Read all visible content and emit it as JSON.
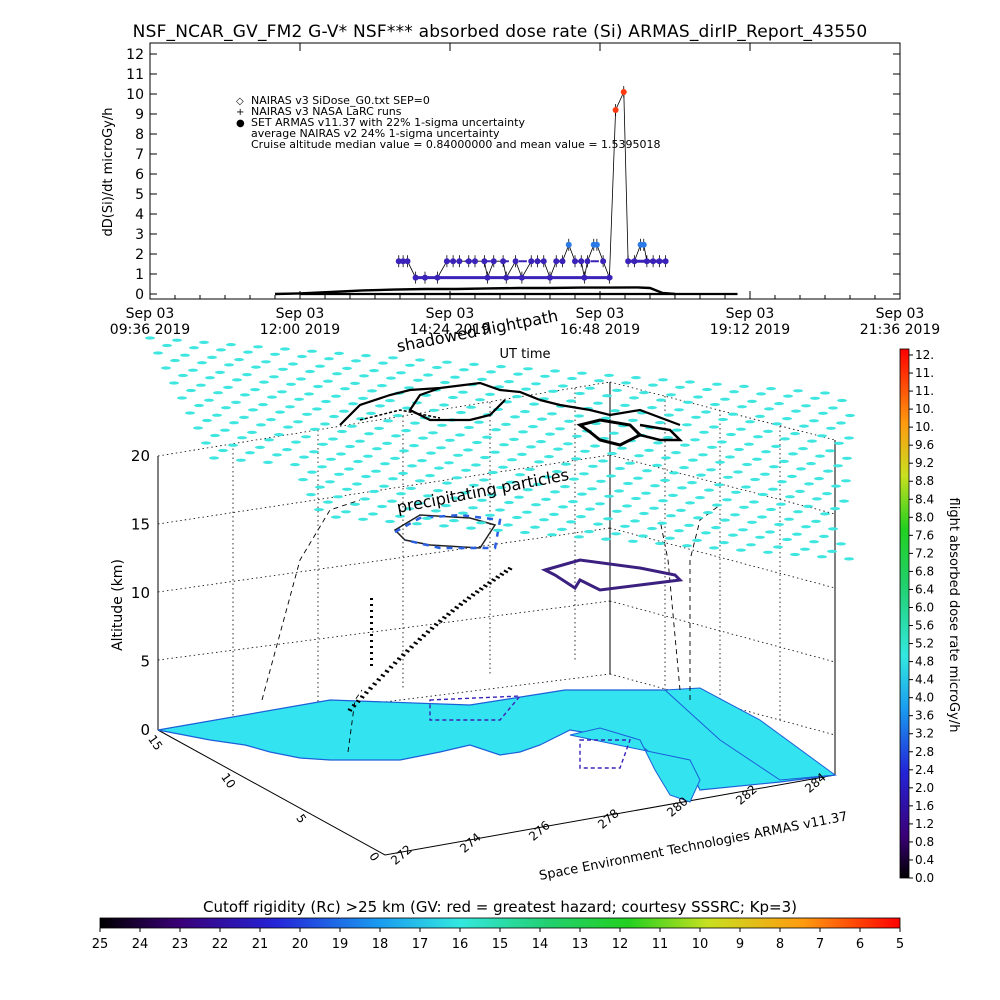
{
  "title": "NSF_NCAR_GV_FM2 G-V* NSF*** absorbed dose rate (Si) ARMAS_dirIP_Report_43550",
  "chart_data": [
    {
      "type": "line",
      "ylabel": "dD(Si)/dt microGy/h",
      "xlabel": "UT time",
      "ylim": [
        0,
        12
      ],
      "yticks": [
        "0",
        "1",
        "2",
        "3",
        "4",
        "5",
        "6",
        "7",
        "8",
        "9",
        "10",
        "11",
        "12"
      ],
      "xticks": [
        {
          "date": "Sep 03",
          "time": "09:36 2019"
        },
        {
          "date": "Sep 03",
          "time": "12:00 2019"
        },
        {
          "date": "Sep 03",
          "time": "14:24 2019"
        },
        {
          "date": "Sep 03",
          "time": "16:48 2019"
        },
        {
          "date": "Sep 03",
          "time": "19:12 2019"
        },
        {
          "date": "Sep 03",
          "time": "21:36 2019"
        }
      ],
      "legend": [
        {
          "marker": "◇",
          "text": "NAIRAS v3 SiDose_G0.txt SEP=0"
        },
        {
          "marker": "+",
          "text": "NAIRAS v3 NASA LaRC runs"
        },
        {
          "marker": "●",
          "text": "SET ARMAS v11.37 with 22% 1-sigma uncertainty"
        },
        {
          "marker": "",
          "text": "average NAIRAS v2 24% 1-sigma uncertainty"
        },
        {
          "marker": "",
          "text": "Cruise altitude median value = 0.84000000 and mean value = 1.5395018"
        }
      ],
      "series": [
        {
          "name": "NAIRAS v3 NASA LaRC runs",
          "values": [
            [
              11.6,
              0
            ],
            [
              12.0,
              0.03
            ],
            [
              12.5,
              0.1
            ],
            [
              13.0,
              0.18
            ],
            [
              13.5,
              0.22
            ],
            [
              14.0,
              0.25
            ],
            [
              14.5,
              0.25
            ],
            [
              15.0,
              0.28
            ],
            [
              15.5,
              0.3
            ],
            [
              16.0,
              0.3
            ],
            [
              16.5,
              0.32
            ],
            [
              17.0,
              0.32
            ],
            [
              17.4,
              0.33
            ],
            [
              17.6,
              0.3
            ],
            [
              17.8,
              0.05
            ],
            [
              18.0,
              0
            ]
          ]
        },
        {
          "name": "SET ARMAS v11.37",
          "values": [
            [
              13.58,
              1.64
            ],
            [
              13.65,
              1.64
            ],
            [
              13.72,
              1.64
            ],
            [
              13.85,
              0.82
            ],
            [
              14.0,
              0.82
            ],
            [
              14.2,
              0.82
            ],
            [
              14.35,
              1.64
            ],
            [
              14.45,
              1.64
            ],
            [
              14.55,
              1.64
            ],
            [
              14.7,
              1.64
            ],
            [
              14.8,
              1.64
            ],
            [
              14.95,
              1.64
            ],
            [
              15.0,
              0.82
            ],
            [
              15.1,
              1.64
            ],
            [
              15.25,
              1.64
            ],
            [
              15.3,
              0.82
            ],
            [
              15.45,
              1.64
            ],
            [
              15.55,
              0.82
            ],
            [
              15.7,
              1.64
            ],
            [
              15.8,
              1.64
            ],
            [
              15.9,
              1.64
            ],
            [
              16.0,
              0.82
            ],
            [
              16.1,
              1.64
            ],
            [
              16.2,
              1.64
            ],
            [
              16.3,
              2.46
            ],
            [
              16.4,
              1.64
            ],
            [
              16.5,
              1.64
            ],
            [
              16.55,
              0.82
            ],
            [
              16.6,
              1.64
            ],
            [
              16.7,
              2.46
            ],
            [
              16.75,
              2.46
            ],
            [
              16.85,
              1.64
            ],
            [
              16.95,
              0.82
            ],
            [
              17.05,
              9.2
            ],
            [
              17.18,
              10.1
            ],
            [
              17.25,
              1.64
            ],
            [
              17.35,
              1.64
            ],
            [
              17.45,
              2.46
            ],
            [
              17.5,
              2.46
            ],
            [
              17.55,
              1.64
            ],
            [
              17.65,
              1.64
            ],
            [
              17.75,
              1.64
            ],
            [
              17.85,
              1.64
            ]
          ]
        }
      ]
    },
    {
      "type": "scatter",
      "zlabel": "Altitude (km)",
      "zticks": [
        "0",
        "5",
        "10",
        "15",
        "20"
      ],
      "latticks": [
        "15",
        "10",
        "5",
        "0"
      ],
      "lonticks": [
        "272",
        "274",
        "276",
        "278",
        "280",
        "282",
        "284"
      ],
      "annotations": [
        "shadowed flightpath",
        "precipitating particles",
        "Space Environment Technologies ARMAS v11.37"
      ],
      "colorbar": {
        "label": "flight absorbed dose rate microGy/h",
        "ticks": [
          "12.",
          "11.",
          "11.",
          "10.",
          "10.",
          "9.6",
          "9.2",
          "8.8",
          "8.4",
          "8.0",
          "7.6",
          "7.2",
          "6.8",
          "6.4",
          "6.0",
          "5.6",
          "5.2",
          "4.8",
          "4.4",
          "4.0",
          "3.6",
          "3.2",
          "2.8",
          "2.4",
          "2.0",
          "1.6",
          "1.2",
          "0.8",
          "0.4",
          "0.0"
        ]
      }
    },
    {
      "type": "heatmap",
      "colorbar": {
        "label": "Cutoff rigidity (Rc) >25 km (GV: red = greatest hazard; courtesy SSSRC; Kp=3)",
        "ticks": [
          "25",
          "24",
          "23",
          "22",
          "21",
          "20",
          "19",
          "18",
          "17",
          "16",
          "15",
          "14",
          "13",
          "12",
          "11",
          "10",
          "9",
          "8",
          "7",
          "6",
          "5"
        ]
      }
    }
  ],
  "colors": {
    "surface": "#33e4f0",
    "lattice": "#3fe6e0",
    "armas": "#3b22b8",
    "armas_high": "#2a7ae8",
    "peak": "#ff2a00",
    "coast": "#1b5fd8"
  }
}
